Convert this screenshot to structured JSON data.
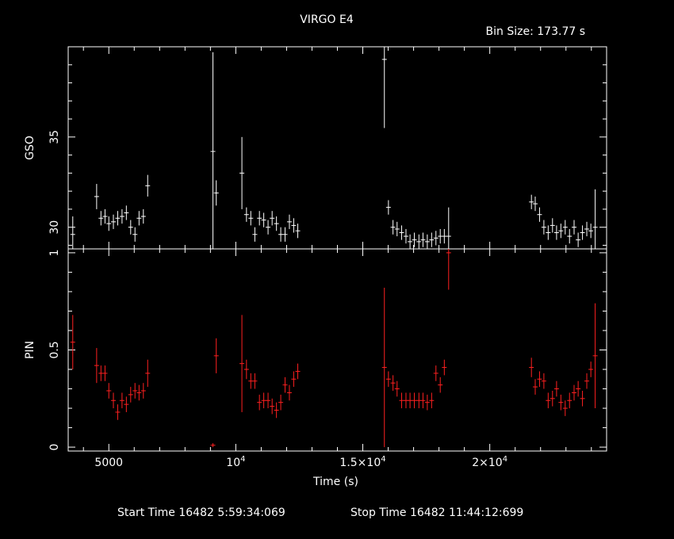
{
  "header": {
    "title": "VIRGO E4",
    "bin_size": "Bin Size: 173.77 s"
  },
  "footer": {
    "start_time": "Start Time 16482  5:59:34:069",
    "stop_time": "Stop Time 16482 11:44:12:699"
  },
  "colors": {
    "background": "#000000",
    "gso": "#ffffff",
    "pin": "#ff2020",
    "axes": "#ffffff"
  },
  "chart_data": [
    {
      "type": "scatter",
      "panel": "top",
      "ylabel": "GSO",
      "xlim": [
        3400,
        24600
      ],
      "ylim": [
        28.8,
        40.0
      ],
      "yticks": [
        {
          "value": 30,
          "label": "30"
        },
        {
          "value": 35,
          "label": "35"
        }
      ],
      "series": [
        {
          "color": "#ffffff",
          "points": [
            [
              3580,
              29.6,
              1.0
            ],
            [
              4520,
              31.7,
              0.7
            ],
            [
              4690,
              30.5,
              0.4
            ],
            [
              4850,
              30.6,
              0.4
            ],
            [
              5000,
              30.2,
              0.4
            ],
            [
              5180,
              30.3,
              0.4
            ],
            [
              5350,
              30.5,
              0.4
            ],
            [
              5520,
              30.6,
              0.4
            ],
            [
              5690,
              30.8,
              0.4
            ],
            [
              5860,
              30.0,
              0.4
            ],
            [
              6030,
              29.6,
              0.4
            ],
            [
              6190,
              30.5,
              0.4
            ],
            [
              6360,
              30.6,
              0.4
            ],
            [
              6530,
              32.3,
              0.6
            ],
            [
              9100,
              34.2,
              5.5
            ],
            [
              9230,
              31.9,
              0.7
            ],
            [
              10240,
              33.0,
              2.0
            ],
            [
              10420,
              30.7,
              0.4
            ],
            [
              10590,
              30.5,
              0.4
            ],
            [
              10750,
              29.6,
              0.4
            ],
            [
              10930,
              30.5,
              0.4
            ],
            [
              11100,
              30.4,
              0.4
            ],
            [
              11270,
              30.0,
              0.4
            ],
            [
              11430,
              30.5,
              0.4
            ],
            [
              11600,
              30.2,
              0.4
            ],
            [
              11770,
              29.6,
              0.4
            ],
            [
              11940,
              29.6,
              0.4
            ],
            [
              12110,
              30.3,
              0.4
            ],
            [
              12280,
              30.1,
              0.4
            ],
            [
              12440,
              29.8,
              0.4
            ],
            [
              15850,
              39.3,
              3.8
            ],
            [
              16010,
              31.1,
              0.4
            ],
            [
              16190,
              30.0,
              0.4
            ],
            [
              16350,
              29.9,
              0.4
            ],
            [
              16530,
              29.7,
              0.4
            ],
            [
              16700,
              29.5,
              0.4
            ],
            [
              16860,
              29.2,
              0.4
            ],
            [
              17030,
              29.3,
              0.4
            ],
            [
              17210,
              29.2,
              0.4
            ],
            [
              17370,
              29.3,
              0.4
            ],
            [
              17540,
              29.2,
              0.4
            ],
            [
              17710,
              29.3,
              0.4
            ],
            [
              17880,
              29.4,
              0.4
            ],
            [
              18050,
              29.5,
              0.4
            ],
            [
              18210,
              29.5,
              0.4
            ],
            [
              18380,
              29.5,
              1.6
            ],
            [
              21640,
              31.4,
              0.4
            ],
            [
              21790,
              31.3,
              0.4
            ],
            [
              21960,
              30.7,
              0.4
            ],
            [
              22130,
              30.0,
              0.4
            ],
            [
              22300,
              29.7,
              0.4
            ],
            [
              22470,
              30.1,
              0.4
            ],
            [
              22630,
              29.7,
              0.4
            ],
            [
              22800,
              29.8,
              0.4
            ],
            [
              22970,
              30.0,
              0.4
            ],
            [
              23140,
              29.5,
              0.4
            ],
            [
              23320,
              30.0,
              0.4
            ],
            [
              23480,
              29.3,
              0.4
            ],
            [
              23650,
              29.7,
              0.4
            ],
            [
              23820,
              29.9,
              0.4
            ],
            [
              23980,
              29.8,
              0.4
            ],
            [
              24150,
              30.0,
              2.1
            ]
          ]
        }
      ]
    },
    {
      "type": "scatter",
      "panel": "bottom",
      "ylabel": "PIN",
      "xlabel": "Time (s)",
      "xlim": [
        3400,
        24600
      ],
      "ylim": [
        -0.02,
        1.02
      ],
      "yticks": [
        {
          "value": 0,
          "label": "0"
        },
        {
          "value": 0.5,
          "label": "0.5"
        },
        {
          "value": 1,
          "label": "1"
        }
      ],
      "xticks": [
        {
          "value": 5000,
          "label": "5000"
        },
        {
          "value": 10000,
          "label": "10",
          "sup": "4"
        },
        {
          "value": 15000,
          "label": "1.5×10",
          "sup": "4"
        },
        {
          "value": 20000,
          "label": "2×10",
          "sup": "4"
        }
      ],
      "series": [
        {
          "color": "#ff2020",
          "points": [
            [
              3580,
              0.54,
              0.14
            ],
            [
              4520,
              0.42,
              0.09
            ],
            [
              4690,
              0.38,
              0.04
            ],
            [
              4850,
              0.38,
              0.04
            ],
            [
              5000,
              0.29,
              0.04
            ],
            [
              5180,
              0.24,
              0.04
            ],
            [
              5350,
              0.18,
              0.04
            ],
            [
              5520,
              0.24,
              0.04
            ],
            [
              5690,
              0.22,
              0.04
            ],
            [
              5860,
              0.27,
              0.04
            ],
            [
              6030,
              0.29,
              0.04
            ],
            [
              6190,
              0.28,
              0.04
            ],
            [
              6360,
              0.29,
              0.04
            ],
            [
              6530,
              0.38,
              0.07
            ],
            [
              9100,
              0.01,
              0.01
            ],
            [
              9230,
              0.47,
              0.09
            ],
            [
              10240,
              0.43,
              0.25
            ],
            [
              10420,
              0.4,
              0.05
            ],
            [
              10590,
              0.34,
              0.04
            ],
            [
              10750,
              0.34,
              0.04
            ],
            [
              10930,
              0.23,
              0.04
            ],
            [
              11100,
              0.24,
              0.04
            ],
            [
              11270,
              0.24,
              0.04
            ],
            [
              11430,
              0.21,
              0.04
            ],
            [
              11600,
              0.19,
              0.04
            ],
            [
              11770,
              0.23,
              0.04
            ],
            [
              11940,
              0.32,
              0.04
            ],
            [
              12110,
              0.28,
              0.04
            ],
            [
              12280,
              0.35,
              0.04
            ],
            [
              12440,
              0.39,
              0.04
            ],
            [
              15850,
              0.41,
              0.41
            ],
            [
              16010,
              0.35,
              0.04
            ],
            [
              16190,
              0.33,
              0.04
            ],
            [
              16350,
              0.3,
              0.04
            ],
            [
              16530,
              0.24,
              0.04
            ],
            [
              16700,
              0.24,
              0.04
            ],
            [
              16860,
              0.24,
              0.04
            ],
            [
              17030,
              0.24,
              0.04
            ],
            [
              17210,
              0.24,
              0.04
            ],
            [
              17370,
              0.24,
              0.04
            ],
            [
              17540,
              0.23,
              0.04
            ],
            [
              17710,
              0.24,
              0.04
            ],
            [
              17880,
              0.38,
              0.04
            ],
            [
              18050,
              0.32,
              0.04
            ],
            [
              18210,
              0.41,
              0.04
            ],
            [
              18380,
              1.0,
              0.19
            ],
            [
              21640,
              0.41,
              0.05
            ],
            [
              21790,
              0.31,
              0.04
            ],
            [
              21960,
              0.35,
              0.04
            ],
            [
              22130,
              0.34,
              0.04
            ],
            [
              22300,
              0.24,
              0.04
            ],
            [
              22470,
              0.25,
              0.04
            ],
            [
              22630,
              0.3,
              0.04
            ],
            [
              22800,
              0.23,
              0.04
            ],
            [
              22970,
              0.2,
              0.04
            ],
            [
              23140,
              0.24,
              0.04
            ],
            [
              23320,
              0.28,
              0.04
            ],
            [
              23480,
              0.3,
              0.04
            ],
            [
              23650,
              0.25,
              0.04
            ],
            [
              23820,
              0.34,
              0.04
            ],
            [
              23980,
              0.4,
              0.04
            ],
            [
              24150,
              0.47,
              0.27
            ]
          ]
        }
      ]
    }
  ]
}
